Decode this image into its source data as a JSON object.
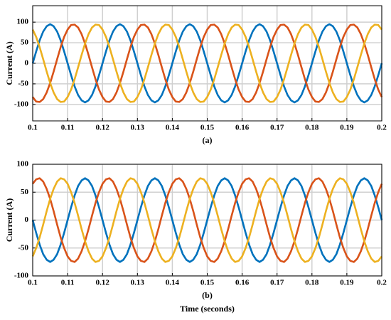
{
  "chart_data": [
    {
      "type": "line",
      "ylabel": "Current (A)",
      "caption": "(a)",
      "x": [
        0.1,
        0.101,
        0.102,
        0.103,
        0.104,
        0.105,
        0.106,
        0.107,
        0.108,
        0.109,
        0.11,
        0.111,
        0.112,
        0.113,
        0.114,
        0.115,
        0.116,
        0.117,
        0.118,
        0.119,
        0.12,
        0.121,
        0.122,
        0.123,
        0.124,
        0.125,
        0.126,
        0.127,
        0.128,
        0.129,
        0.13,
        0.131,
        0.132,
        0.133,
        0.134,
        0.135,
        0.136,
        0.137,
        0.138,
        0.139,
        0.14,
        0.141,
        0.142,
        0.143,
        0.144,
        0.145,
        0.146,
        0.147,
        0.148,
        0.149,
        0.15,
        0.151,
        0.152,
        0.153,
        0.154,
        0.155,
        0.156,
        0.157,
        0.158,
        0.159,
        0.16,
        0.161,
        0.162,
        0.163,
        0.164,
        0.165,
        0.166,
        0.167,
        0.168,
        0.169,
        0.17,
        0.171,
        0.172,
        0.173,
        0.174,
        0.175,
        0.176,
        0.177,
        0.178,
        0.179,
        0.18,
        0.181,
        0.182,
        0.183,
        0.184,
        0.185,
        0.186,
        0.187,
        0.188,
        0.189,
        0.19,
        0.191,
        0.192,
        0.193,
        0.194,
        0.195,
        0.196,
        0.197,
        0.198,
        0.199,
        0.2
      ],
      "series": [
        {
          "color": "#0072BD",
          "values": [
            0,
            29,
            56,
            77,
            90,
            95,
            90,
            77,
            56,
            29,
            0,
            -29,
            -56,
            -77,
            -90,
            -95,
            -90,
            -77,
            -56,
            -29,
            0,
            29,
            56,
            77,
            90,
            95,
            90,
            77,
            56,
            29,
            0,
            -29,
            -56,
            -77,
            -90,
            -95,
            -90,
            -77,
            -56,
            -29,
            0,
            29,
            56,
            77,
            90,
            95,
            90,
            77,
            56,
            29,
            0,
            -29,
            -56,
            -77,
            -90,
            -95,
            -90,
            -77,
            -56,
            -29,
            0,
            29,
            56,
            77,
            90,
            95,
            90,
            77,
            56,
            29,
            0,
            -29,
            -56,
            -77,
            -90,
            -95,
            -90,
            -77,
            -56,
            -29,
            0,
            29,
            56,
            77,
            90,
            95,
            90,
            77,
            56,
            29,
            0,
            -29,
            -56,
            -77,
            -90,
            -95,
            -90,
            -77,
            -56,
            -29,
            0
          ]
        },
        {
          "color": "#D95319",
          "values": [
            -82,
            -93,
            -94,
            -87,
            -71,
            -48,
            -20,
            10,
            39,
            64,
            82,
            93,
            94,
            87,
            71,
            48,
            20,
            -10,
            -39,
            -64,
            -82,
            -93,
            -94,
            -87,
            -71,
            -48,
            -20,
            10,
            39,
            64,
            82,
            93,
            94,
            87,
            71,
            48,
            20,
            -10,
            -39,
            -64,
            -82,
            -93,
            -94,
            -87,
            -71,
            -48,
            -20,
            10,
            39,
            64,
            82,
            93,
            94,
            87,
            71,
            48,
            20,
            -10,
            -39,
            -64,
            -82,
            -93,
            -94,
            -87,
            -71,
            -48,
            -20,
            10,
            39,
            64,
            82,
            93,
            94,
            87,
            71,
            48,
            20,
            -10,
            -39,
            -64,
            -82,
            -93,
            -94,
            -87,
            -71,
            -48,
            -20,
            10,
            39,
            64,
            82,
            93,
            94,
            87,
            71,
            48,
            20,
            -10,
            -39,
            -64,
            -82
          ]
        },
        {
          "color": "#EDB120",
          "values": [
            82,
            64,
            39,
            10,
            -20,
            -48,
            -71,
            -87,
            -94,
            -93,
            -82,
            -64,
            -39,
            -10,
            20,
            48,
            71,
            87,
            94,
            93,
            82,
            64,
            39,
            10,
            -20,
            -48,
            -71,
            -87,
            -94,
            -93,
            -82,
            -64,
            -39,
            -10,
            20,
            48,
            71,
            87,
            94,
            93,
            82,
            64,
            39,
            10,
            -20,
            -48,
            -71,
            -87,
            -94,
            -93,
            -82,
            -64,
            -39,
            -10,
            20,
            48,
            71,
            87,
            94,
            93,
            82,
            64,
            39,
            10,
            -20,
            -48,
            -71,
            -87,
            -94,
            -93,
            -82,
            -64,
            -39,
            -10,
            20,
            48,
            71,
            87,
            94,
            93,
            82,
            64,
            39,
            10,
            -20,
            -48,
            -71,
            -87,
            -94,
            -93,
            -82,
            -64,
            -39,
            -10,
            20,
            48,
            71,
            87,
            94,
            93,
            82
          ]
        }
      ],
      "xlim": [
        0.1,
        0.2
      ],
      "xticks": [
        0.1,
        0.11,
        0.12,
        0.13,
        0.14,
        0.15,
        0.16,
        0.17,
        0.18,
        0.19,
        0.2
      ],
      "ylim": [
        -140,
        140
      ],
      "yticks": [
        -100,
        -50,
        0,
        50,
        100
      ],
      "grid": true
    },
    {
      "type": "line",
      "ylabel": "Current (A)",
      "caption": "(b)",
      "xlabel": "Time (seconds)",
      "x": [
        0.1,
        0.101,
        0.102,
        0.103,
        0.104,
        0.105,
        0.106,
        0.107,
        0.108,
        0.109,
        0.11,
        0.111,
        0.112,
        0.113,
        0.114,
        0.115,
        0.116,
        0.117,
        0.118,
        0.119,
        0.12,
        0.121,
        0.122,
        0.123,
        0.124,
        0.125,
        0.126,
        0.127,
        0.128,
        0.129,
        0.13,
        0.131,
        0.132,
        0.133,
        0.134,
        0.135,
        0.136,
        0.137,
        0.138,
        0.139,
        0.14,
        0.141,
        0.142,
        0.143,
        0.144,
        0.145,
        0.146,
        0.147,
        0.148,
        0.149,
        0.15,
        0.151,
        0.152,
        0.153,
        0.154,
        0.155,
        0.156,
        0.157,
        0.158,
        0.159,
        0.16,
        0.161,
        0.162,
        0.163,
        0.164,
        0.165,
        0.166,
        0.167,
        0.168,
        0.169,
        0.17,
        0.171,
        0.172,
        0.173,
        0.174,
        0.175,
        0.176,
        0.177,
        0.178,
        0.179,
        0.18,
        0.181,
        0.182,
        0.183,
        0.184,
        0.185,
        0.186,
        0.187,
        0.188,
        0.189,
        0.19,
        0.191,
        0.192,
        0.193,
        0.194,
        0.195,
        0.196,
        0.197,
        0.198,
        0.199,
        0.2
      ],
      "series": [
        {
          "color": "#0072BD",
          "values": [
            0,
            -23,
            -44,
            -61,
            -71,
            -75,
            -71,
            -61,
            -44,
            -23,
            0,
            23,
            44,
            61,
            71,
            75,
            71,
            61,
            44,
            23,
            0,
            -23,
            -44,
            -61,
            -71,
            -75,
            -71,
            -61,
            -44,
            -23,
            0,
            23,
            44,
            61,
            71,
            75,
            71,
            61,
            44,
            23,
            0,
            -23,
            -44,
            -61,
            -71,
            -75,
            -71,
            -61,
            -44,
            -23,
            0,
            23,
            44,
            61,
            71,
            75,
            71,
            61,
            44,
            23,
            0,
            -23,
            -44,
            -61,
            -71,
            -75,
            -71,
            -61,
            -44,
            -23,
            0,
            23,
            44,
            61,
            71,
            75,
            71,
            61,
            44,
            23,
            0,
            -23,
            -44,
            -61,
            -71,
            -75,
            -71,
            -61,
            -44,
            -23,
            0,
            23,
            44,
            61,
            71,
            75,
            71,
            61,
            44,
            23,
            0
          ]
        },
        {
          "color": "#D95319",
          "values": [
            65,
            73,
            75,
            69,
            56,
            38,
            16,
            -8,
            -31,
            -50,
            -65,
            -73,
            -75,
            -69,
            -56,
            -38,
            -16,
            8,
            31,
            50,
            65,
            73,
            75,
            69,
            56,
            38,
            16,
            -8,
            -31,
            -50,
            -65,
            -73,
            -75,
            -69,
            -56,
            -38,
            -16,
            8,
            31,
            50,
            65,
            73,
            75,
            69,
            56,
            38,
            16,
            -8,
            -31,
            -50,
            -65,
            -73,
            -75,
            -69,
            -56,
            -38,
            -16,
            8,
            31,
            50,
            65,
            73,
            75,
            69,
            56,
            38,
            16,
            -8,
            -31,
            -50,
            -65,
            -73,
            -75,
            -69,
            -56,
            -38,
            -16,
            8,
            31,
            50,
            65,
            73,
            75,
            69,
            56,
            38,
            16,
            -8,
            -31,
            -50,
            -65,
            -73,
            -75,
            -69,
            -56,
            -38,
            -16,
            8,
            31,
            50,
            65
          ]
        },
        {
          "color": "#EDB120",
          "values": [
            -65,
            -50,
            -31,
            -8,
            16,
            38,
            56,
            69,
            75,
            73,
            65,
            50,
            31,
            8,
            -16,
            -38,
            -56,
            -69,
            -75,
            -73,
            -65,
            -50,
            -31,
            -8,
            16,
            38,
            56,
            69,
            75,
            73,
            65,
            50,
            31,
            8,
            -16,
            -38,
            -56,
            -69,
            -75,
            -73,
            -65,
            -50,
            -31,
            -8,
            16,
            38,
            56,
            69,
            75,
            73,
            65,
            50,
            31,
            8,
            -16,
            -38,
            -56,
            -69,
            -75,
            -73,
            -65,
            -50,
            -31,
            -8,
            16,
            38,
            56,
            69,
            75,
            73,
            65,
            50,
            31,
            8,
            -16,
            -38,
            -56,
            -69,
            -75,
            -73,
            -65,
            -50,
            -31,
            -8,
            16,
            38,
            56,
            69,
            75,
            73,
            65,
            50,
            31,
            8,
            -16,
            -38,
            -56,
            -69,
            -75,
            -73,
            -65
          ]
        }
      ],
      "xlim": [
        0.1,
        0.2
      ],
      "xticks": [
        0.1,
        0.11,
        0.12,
        0.13,
        0.14,
        0.15,
        0.16,
        0.17,
        0.18,
        0.19,
        0.2
      ],
      "ylim": [
        -100,
        100
      ],
      "yticks": [
        -100,
        -50,
        0,
        50,
        100
      ],
      "grid": true
    }
  ]
}
